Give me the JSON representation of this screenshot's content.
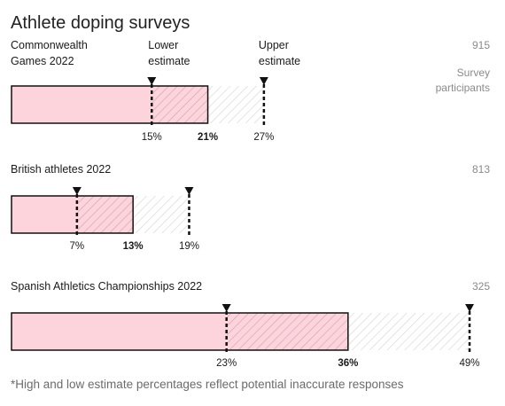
{
  "chart_data": {
    "type": "bar",
    "title": "Athlete doping surveys",
    "marker_labels": {
      "lower": "Lower estimate",
      "upper": "Upper estimate"
    },
    "participants_label": "Survey participants",
    "footnote": "*High and low estimate percentages reflect potential inaccurate responses",
    "x_range": [
      0,
      49
    ],
    "colors": {
      "base_fill": "#fdd3dc",
      "bar_border": "#111111",
      "hatch_stroke": "#cfcfcf",
      "hatch_stroke_dark": "#c9a3ab",
      "marker": "#111111"
    },
    "series": [
      {
        "label": "Commonwealth Games 2022",
        "participants": "915",
        "lower": 15,
        "central": 21,
        "upper": 27,
        "lower_label": "15%",
        "central_label": "21%",
        "upper_label": "27%"
      },
      {
        "label": "British athletes 2022",
        "participants": "813",
        "lower": 7,
        "central": 13,
        "upper": 19,
        "lower_label": "7%",
        "central_label": "13%",
        "upper_label": "19%"
      },
      {
        "label": "Spanish Athletics Championships 2022",
        "participants": "325",
        "lower": 23,
        "central": 36,
        "upper": 49,
        "lower_label": "23%",
        "central_label": "36%",
        "upper_label": "49%"
      }
    ]
  }
}
